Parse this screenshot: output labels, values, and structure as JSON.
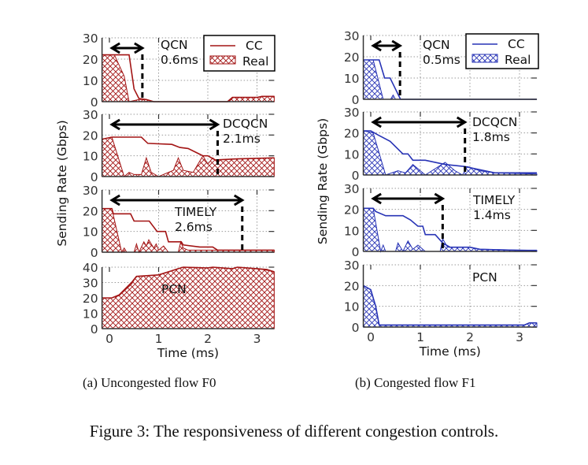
{
  "figure_caption": "Figure 3: The responsiveness of different congestion controls.",
  "chart_data": {
    "type": "area",
    "xlabel": "Time (ms)",
    "ylabel": "Sending Rate (Gbps)",
    "xlim": [
      -0.15,
      3.35
    ],
    "xticks": [
      "0",
      "1",
      "2",
      "3"
    ],
    "grid": true,
    "legend": {
      "placement": "top-right of first subplot",
      "entries": [
        "CC",
        "Real"
      ]
    },
    "panels": [
      {
        "caption": "(a) Uncongested flow F0",
        "color": "#a31515",
        "subplots": [
          {
            "label": "QCN",
            "time_label": "0.6ms",
            "marker_ms": 0.67,
            "ylim": [
              0,
              30
            ],
            "yticks": [
              "0",
              "10",
              "20",
              "30"
            ],
            "cc": [
              [
                -0.15,
                22
              ],
              [
                0.4,
                22
              ],
              [
                0.5,
                6
              ],
              [
                0.6,
                1.5
              ],
              [
                0.75,
                1
              ],
              [
                0.9,
                0
              ],
              [
                2.4,
                0
              ],
              [
                2.5,
                2
              ],
              [
                3.0,
                2
              ],
              [
                3.1,
                2.5
              ],
              [
                3.35,
                2.5
              ]
            ],
            "real": [
              [
                -0.15,
                22
              ],
              [
                0.1,
                22
              ],
              [
                0.3,
                12
              ],
              [
                0.4,
                0
              ],
              [
                0.6,
                1
              ],
              [
                0.75,
                1
              ],
              [
                0.9,
                0
              ],
              [
                2.4,
                0
              ],
              [
                2.5,
                2
              ],
              [
                3.0,
                2
              ],
              [
                3.1,
                2.5
              ],
              [
                3.35,
                2.5
              ]
            ]
          },
          {
            "label": "DCQCN",
            "time_label": "2.1ms",
            "marker_ms": 2.2,
            "ylim": [
              0,
              30
            ],
            "yticks": [
              "0",
              "10",
              "20",
              "30"
            ],
            "cc": [
              [
                -0.15,
                18
              ],
              [
                0.05,
                19
              ],
              [
                0.65,
                19
              ],
              [
                0.78,
                16
              ],
              [
                1.27,
                15.5
              ],
              [
                1.43,
                14
              ],
              [
                1.6,
                13.5
              ],
              [
                1.9,
                10
              ],
              [
                2.0,
                10
              ],
              [
                2.15,
                8
              ],
              [
                2.6,
                8.5
              ],
              [
                3.35,
                9
              ]
            ],
            "real": [
              [
                -0.15,
                18
              ],
              [
                0.05,
                19
              ],
              [
                0.3,
                0
              ],
              [
                0.4,
                2
              ],
              [
                0.5,
                1
              ],
              [
                0.65,
                1
              ],
              [
                0.75,
                9
              ],
              [
                0.85,
                2
              ],
              [
                1.0,
                0
              ],
              [
                1.3,
                3
              ],
              [
                1.4,
                9
              ],
              [
                1.5,
                3
              ],
              [
                1.7,
                2
              ],
              [
                1.9,
                10
              ],
              [
                2.0,
                6
              ],
              [
                2.1,
                9
              ],
              [
                2.15,
                8
              ],
              [
                2.6,
                8.5
              ],
              [
                3.35,
                9
              ]
            ]
          },
          {
            "label": "TIMELY",
            "time_label": "2.6ms",
            "marker_ms": 2.7,
            "ylim": [
              0,
              30
            ],
            "yticks": [
              "0",
              "10",
              "20",
              "30"
            ],
            "cc": [
              [
                -0.15,
                21
              ],
              [
                0.05,
                21
              ],
              [
                0.08,
                18.5
              ],
              [
                0.43,
                18.5
              ],
              [
                0.5,
                15
              ],
              [
                0.81,
                15
              ],
              [
                0.97,
                10
              ],
              [
                1.14,
                10
              ],
              [
                1.2,
                5
              ],
              [
                1.46,
                5
              ],
              [
                1.5,
                3.5
              ],
              [
                1.84,
                2.5
              ],
              [
                2.1,
                2.5
              ],
              [
                2.2,
                1
              ],
              [
                3.35,
                1
              ]
            ],
            "real": [
              [
                -0.15,
                21
              ],
              [
                0.05,
                21
              ],
              [
                0.25,
                0
              ],
              [
                0.3,
                2
              ],
              [
                0.35,
                0
              ],
              [
                0.5,
                0
              ],
              [
                0.55,
                4
              ],
              [
                0.6,
                0
              ],
              [
                0.7,
                5
              ],
              [
                0.75,
                3
              ],
              [
                0.8,
                6
              ],
              [
                0.9,
                2
              ],
              [
                0.95,
                4
              ],
              [
                1.0,
                1
              ],
              [
                1.1,
                3
              ],
              [
                1.2,
                0
              ],
              [
                1.4,
                0
              ],
              [
                1.45,
                5
              ],
              [
                1.5,
                2
              ],
              [
                1.6,
                1
              ],
              [
                2.5,
                1
              ],
              [
                3.35,
                1
              ]
            ]
          },
          {
            "label": "PCN",
            "time_label": "",
            "marker_ms": null,
            "ylim": [
              0,
              40
            ],
            "yticks": [
              "0",
              "10",
              "20",
              "30",
              "40"
            ],
            "cc": [
              [
                -0.15,
                20
              ],
              [
                0.05,
                20
              ],
              [
                0.2,
                22
              ],
              [
                0.45,
                30
              ],
              [
                0.55,
                34
              ],
              [
                1.0,
                35
              ],
              [
                1.1,
                36
              ],
              [
                1.2,
                37
              ],
              [
                1.4,
                39
              ],
              [
                1.5,
                40
              ],
              [
                2.0,
                39.5
              ],
              [
                2.1,
                40
              ],
              [
                2.5,
                39
              ],
              [
                2.6,
                40
              ],
              [
                3.0,
                39
              ],
              [
                3.2,
                38.5
              ],
              [
                3.35,
                37
              ]
            ],
            "real": [
              [
                -0.15,
                20
              ],
              [
                0.05,
                20
              ],
              [
                0.2,
                21.5
              ],
              [
                0.45,
                29
              ],
              [
                0.55,
                34
              ],
              [
                1.0,
                35
              ],
              [
                1.1,
                36
              ],
              [
                1.2,
                37
              ],
              [
                1.4,
                39
              ],
              [
                1.5,
                40
              ],
              [
                2.0,
                39.5
              ],
              [
                2.1,
                40
              ],
              [
                2.5,
                39
              ],
              [
                2.6,
                40
              ],
              [
                3.0,
                39
              ],
              [
                3.2,
                38
              ],
              [
                3.35,
                37
              ]
            ]
          }
        ]
      },
      {
        "caption": "(b) Congested flow F1",
        "color": "#2733b5",
        "subplots": [
          {
            "label": "QCN",
            "time_label": "0.5ms",
            "marker_ms": 0.59,
            "ylim": [
              0,
              30
            ],
            "yticks": [
              "0",
              "10",
              "20",
              "30"
            ],
            "cc": [
              [
                -0.15,
                18.5
              ],
              [
                0.17,
                18.5
              ],
              [
                0.28,
                10
              ],
              [
                0.39,
                10
              ],
              [
                0.6,
                0
              ],
              [
                3.35,
                0
              ]
            ],
            "real": [
              [
                -0.15,
                18.5
              ],
              [
                0.05,
                18.5
              ],
              [
                0.25,
                0
              ],
              [
                0.4,
                0
              ],
              [
                0.45,
                2
              ],
              [
                0.5,
                0
              ],
              [
                3.35,
                0
              ]
            ]
          },
          {
            "label": "DCQCN",
            "time_label": "1.8ms",
            "marker_ms": 1.9,
            "ylim": [
              0,
              30
            ],
            "yticks": [
              "0",
              "10",
              "20",
              "30"
            ],
            "cc": [
              [
                -0.15,
                21
              ],
              [
                0.0,
                21
              ],
              [
                0.15,
                19
              ],
              [
                0.39,
                16
              ],
              [
                0.65,
                10
              ],
              [
                0.75,
                10
              ],
              [
                0.85,
                7
              ],
              [
                1.1,
                7
              ],
              [
                1.5,
                5
              ],
              [
                1.9,
                4
              ],
              [
                2.1,
                3
              ],
              [
                2.5,
                1
              ],
              [
                3.35,
                1
              ]
            ],
            "real": [
              [
                -0.15,
                21
              ],
              [
                0.05,
                20
              ],
              [
                0.3,
                0
              ],
              [
                0.55,
                2
              ],
              [
                0.7,
                1
              ],
              [
                0.85,
                5
              ],
              [
                1.1,
                0
              ],
              [
                1.5,
                6
              ],
              [
                1.7,
                2
              ],
              [
                1.85,
                0
              ],
              [
                1.95,
                4
              ],
              [
                2.2,
                2
              ],
              [
                2.5,
                1
              ],
              [
                3.35,
                0.5
              ]
            ]
          },
          {
            "label": "TIMELY",
            "time_label": "1.4ms",
            "marker_ms": 1.45,
            "ylim": [
              0,
              30
            ],
            "yticks": [
              "0",
              "10",
              "20",
              "30"
            ],
            "cc": [
              [
                -0.15,
                20.5
              ],
              [
                0.05,
                20.5
              ],
              [
                0.1,
                19
              ],
              [
                0.3,
                17
              ],
              [
                0.65,
                17
              ],
              [
                0.8,
                15
              ],
              [
                0.95,
                12
              ],
              [
                1.05,
                12
              ],
              [
                1.1,
                8
              ],
              [
                1.3,
                8
              ],
              [
                1.45,
                4
              ],
              [
                1.6,
                2
              ],
              [
                2.0,
                2
              ],
              [
                2.2,
                1
              ],
              [
                3.0,
                0.5
              ],
              [
                3.35,
                0.5
              ]
            ],
            "real": [
              [
                -0.15,
                20.5
              ],
              [
                0.05,
                20.5
              ],
              [
                0.2,
                0
              ],
              [
                0.25,
                3
              ],
              [
                0.3,
                0
              ],
              [
                0.5,
                0
              ],
              [
                0.55,
                4
              ],
              [
                0.65,
                0
              ],
              [
                0.75,
                5
              ],
              [
                0.85,
                1
              ],
              [
                0.95,
                3
              ],
              [
                1.1,
                0
              ],
              [
                1.4,
                0
              ],
              [
                1.45,
                6
              ],
              [
                1.55,
                2
              ],
              [
                2.0,
                2
              ],
              [
                2.2,
                1
              ],
              [
                3.35,
                0.5
              ]
            ]
          },
          {
            "label": "PCN",
            "time_label": "",
            "marker_ms": null,
            "ylim": [
              0,
              30
            ],
            "yticks": [
              "0",
              "10",
              "20",
              "30"
            ],
            "cc": [
              [
                -0.15,
                20
              ],
              [
                0.0,
                18
              ],
              [
                0.1,
                10
              ],
              [
                0.17,
                1
              ],
              [
                3.1,
                1
              ],
              [
                3.2,
                2
              ],
              [
                3.35,
                2
              ]
            ],
            "real": [
              [
                -0.15,
                20
              ],
              [
                0.0,
                18
              ],
              [
                0.1,
                10
              ],
              [
                0.17,
                1
              ],
              [
                3.1,
                1
              ],
              [
                3.2,
                2
              ],
              [
                3.35,
                2
              ]
            ]
          }
        ]
      }
    ]
  }
}
